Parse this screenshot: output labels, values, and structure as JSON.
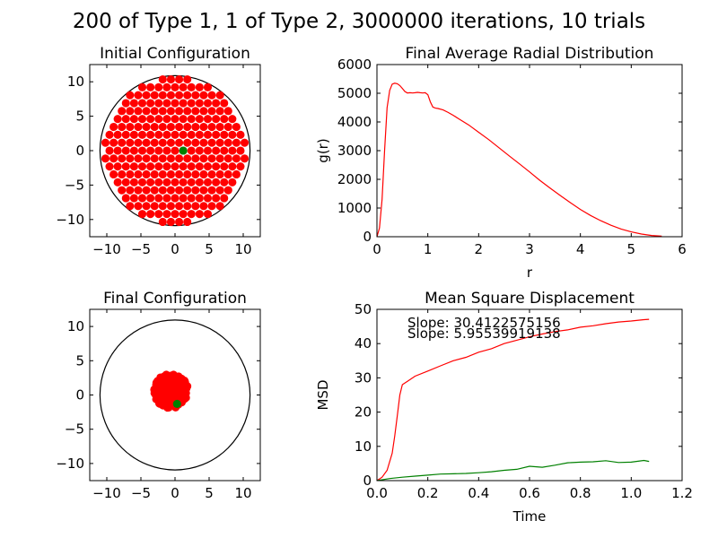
{
  "figure_title": "200 of Type 1, 1 of Type 2, 3000000 iterations, 10 trials",
  "colors": {
    "type1": "#ff0000",
    "type2": "#008000",
    "axis": "#000000",
    "circle": "#000000"
  },
  "chart_data": [
    {
      "id": "initial",
      "type": "scatter",
      "title": "Initial Configuration",
      "xlim": [
        -12.5,
        12.5
      ],
      "ylim": [
        -12.5,
        12.5
      ],
      "xticks": [
        -10,
        -5,
        0,
        5,
        10
      ],
      "yticks": [
        -10,
        -5,
        0,
        5,
        10
      ],
      "xtick_labels": [
        "−10",
        "−5",
        "0",
        "5",
        "10"
      ],
      "ytick_labels": [
        "−10",
        "−5",
        "0",
        "5",
        "10"
      ],
      "boundary_circle_radius": 11,
      "hex_lattice": {
        "type": "hexagonal",
        "spacing": 1.2,
        "row_spacing": 1.15,
        "max_radius": 10.6,
        "point_radius": 0.6,
        "type1_count": 200,
        "type2_count": 1
      },
      "type2_point": {
        "x": 1.2,
        "y": 0.0
      }
    },
    {
      "id": "rdf",
      "type": "line",
      "title": "Final Average Radial Distribution",
      "xlabel": "r",
      "ylabel": "g(r)",
      "xlim": [
        0,
        6
      ],
      "ylim": [
        0,
        6000
      ],
      "xticks": [
        0,
        1,
        2,
        3,
        4,
        5,
        6
      ],
      "yticks": [
        0,
        1000,
        2000,
        3000,
        4000,
        5000,
        6000
      ],
      "series": [
        {
          "color": "#ff0000",
          "x": [
            0.0,
            0.05,
            0.1,
            0.15,
            0.2,
            0.25,
            0.3,
            0.35,
            0.4,
            0.45,
            0.5,
            0.55,
            0.6,
            0.65,
            0.7,
            0.75,
            0.8,
            0.85,
            0.9,
            0.95,
            1.0,
            1.05,
            1.1,
            1.15,
            1.2,
            1.3,
            1.4,
            1.5,
            1.6,
            1.8,
            2.0,
            2.2,
            2.4,
            2.6,
            2.8,
            3.0,
            3.2,
            3.4,
            3.6,
            3.8,
            4.0,
            4.2,
            4.4,
            4.6,
            4.8,
            5.0,
            5.2,
            5.4,
            5.6
          ],
          "y": [
            0,
            300,
            1300,
            3000,
            4500,
            5100,
            5320,
            5350,
            5330,
            5270,
            5170,
            5060,
            5010,
            5020,
            5010,
            5020,
            5030,
            5020,
            5010,
            5020,
            4950,
            4700,
            4520,
            4480,
            4470,
            4420,
            4330,
            4230,
            4120,
            3900,
            3640,
            3380,
            3100,
            2820,
            2540,
            2260,
            1970,
            1700,
            1440,
            1190,
            950,
            740,
            560,
            400,
            270,
            170,
            95,
            45,
            20
          ]
        }
      ]
    },
    {
      "id": "final",
      "type": "scatter",
      "title": "Final Configuration",
      "xlim": [
        -12.5,
        12.5
      ],
      "ylim": [
        -12.5,
        12.5
      ],
      "xticks": [
        -10,
        -5,
        0,
        5,
        10
      ],
      "yticks": [
        -10,
        -5,
        0,
        5,
        10
      ],
      "xtick_labels": [
        "−10",
        "−5",
        "0",
        "5",
        "10"
      ],
      "ytick_labels": [
        "−10",
        "−5",
        "0",
        "5",
        "10"
      ],
      "boundary_circle_radius": 11,
      "cluster": {
        "center_x": -0.6,
        "center_y": 0.6,
        "radius": 2.5,
        "point_radius": 0.6,
        "type1_count": 200
      },
      "type2_point": {
        "x": 0.3,
        "y": -1.3
      }
    },
    {
      "id": "msd",
      "type": "line",
      "title": "Mean Square Displacement",
      "xlabel": "Time",
      "ylabel": "MSD",
      "xlim": [
        0,
        1.2
      ],
      "ylim": [
        0,
        50
      ],
      "xticks": [
        0.0,
        0.2,
        0.4,
        0.6,
        0.8,
        1.0,
        1.2
      ],
      "xtick_labels": [
        "0.0",
        "0.2",
        "0.4",
        "0.6",
        "0.8",
        "1.0",
        "1.2"
      ],
      "yticks": [
        0,
        10,
        20,
        30,
        40,
        50
      ],
      "annotations": [
        "Slope: 30.4122575156",
        "Slope: 5.95539919138"
      ],
      "series": [
        {
          "color": "#ff0000",
          "x": [
            0.0,
            0.02,
            0.04,
            0.06,
            0.07,
            0.08,
            0.09,
            0.1,
            0.12,
            0.15,
            0.2,
            0.25,
            0.3,
            0.35,
            0.4,
            0.45,
            0.5,
            0.55,
            0.6,
            0.65,
            0.7,
            0.75,
            0.8,
            0.85,
            0.9,
            0.95,
            1.0,
            1.05,
            1.07
          ],
          "y": [
            0,
            1,
            3,
            8,
            13,
            19,
            25,
            28,
            29,
            30.5,
            32,
            33.5,
            35,
            36,
            37.5,
            38.5,
            40,
            41,
            42,
            42.8,
            43.5,
            44,
            44.8,
            45.2,
            45.8,
            46.3,
            46.6,
            47,
            47.1
          ]
        },
        {
          "color": "#008000",
          "x": [
            0.0,
            0.05,
            0.1,
            0.15,
            0.2,
            0.25,
            0.3,
            0.35,
            0.4,
            0.45,
            0.5,
            0.55,
            0.6,
            0.65,
            0.7,
            0.75,
            0.8,
            0.85,
            0.9,
            0.95,
            1.0,
            1.05,
            1.07
          ],
          "y": [
            0,
            0.6,
            1.0,
            1.3,
            1.6,
            1.9,
            2.0,
            2.1,
            2.3,
            2.6,
            3.0,
            3.3,
            4.2,
            3.9,
            4.5,
            5.2,
            5.4,
            5.5,
            5.8,
            5.3,
            5.4,
            5.9,
            5.6
          ]
        }
      ]
    }
  ]
}
